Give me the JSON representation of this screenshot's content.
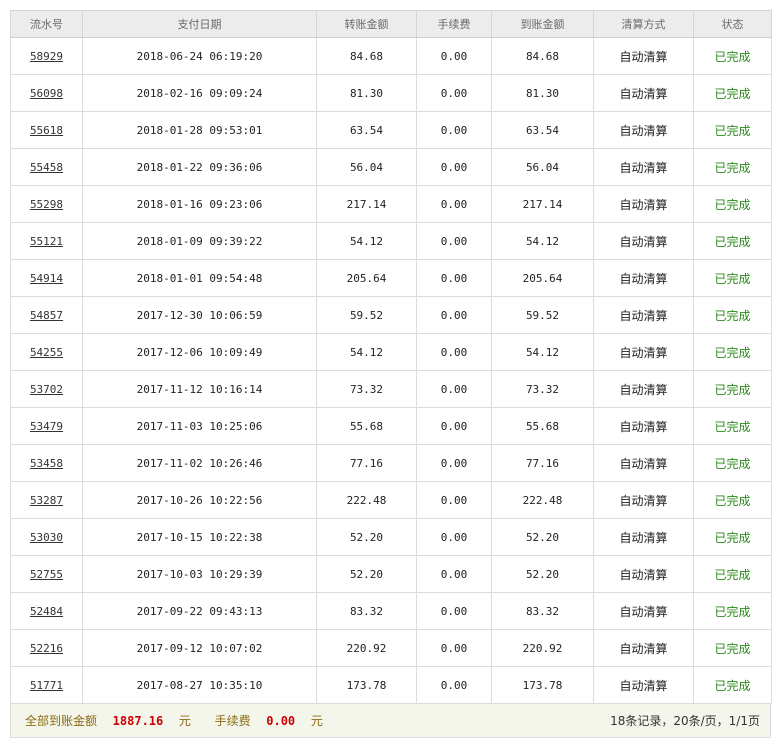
{
  "table": {
    "headers": [
      "流水号",
      "支付日期",
      "转账金额",
      "手续费",
      "到账金额",
      "清算方式",
      "状态"
    ],
    "rows": [
      {
        "serial": "58929",
        "date": "2018-06-24 06:19:20",
        "transfer": "84.68",
        "fee": "0.00",
        "received": "84.68",
        "method": "自动清算",
        "status": "已完成"
      },
      {
        "serial": "56098",
        "date": "2018-02-16 09:09:24",
        "transfer": "81.30",
        "fee": "0.00",
        "received": "81.30",
        "method": "自动清算",
        "status": "已完成"
      },
      {
        "serial": "55618",
        "date": "2018-01-28 09:53:01",
        "transfer": "63.54",
        "fee": "0.00",
        "received": "63.54",
        "method": "自动清算",
        "status": "已完成"
      },
      {
        "serial": "55458",
        "date": "2018-01-22 09:36:06",
        "transfer": "56.04",
        "fee": "0.00",
        "received": "56.04",
        "method": "自动清算",
        "status": "已完成"
      },
      {
        "serial": "55298",
        "date": "2018-01-16 09:23:06",
        "transfer": "217.14",
        "fee": "0.00",
        "received": "217.14",
        "method": "自动清算",
        "status": "已完成"
      },
      {
        "serial": "55121",
        "date": "2018-01-09 09:39:22",
        "transfer": "54.12",
        "fee": "0.00",
        "received": "54.12",
        "method": "自动清算",
        "status": "已完成"
      },
      {
        "serial": "54914",
        "date": "2018-01-01 09:54:48",
        "transfer": "205.64",
        "fee": "0.00",
        "received": "205.64",
        "method": "自动清算",
        "status": "已完成"
      },
      {
        "serial": "54857",
        "date": "2017-12-30 10:06:59",
        "transfer": "59.52",
        "fee": "0.00",
        "received": "59.52",
        "method": "自动清算",
        "status": "已完成"
      },
      {
        "serial": "54255",
        "date": "2017-12-06 10:09:49",
        "transfer": "54.12",
        "fee": "0.00",
        "received": "54.12",
        "method": "自动清算",
        "status": "已完成"
      },
      {
        "serial": "53702",
        "date": "2017-11-12 10:16:14",
        "transfer": "73.32",
        "fee": "0.00",
        "received": "73.32",
        "method": "自动清算",
        "status": "已完成"
      },
      {
        "serial": "53479",
        "date": "2017-11-03 10:25:06",
        "transfer": "55.68",
        "fee": "0.00",
        "received": "55.68",
        "method": "自动清算",
        "status": "已完成"
      },
      {
        "serial": "53458",
        "date": "2017-11-02 10:26:46",
        "transfer": "77.16",
        "fee": "0.00",
        "received": "77.16",
        "method": "自动清算",
        "status": "已完成"
      },
      {
        "serial": "53287",
        "date": "2017-10-26 10:22:56",
        "transfer": "222.48",
        "fee": "0.00",
        "received": "222.48",
        "method": "自动清算",
        "status": "已完成"
      },
      {
        "serial": "53030",
        "date": "2017-10-15 10:22:38",
        "transfer": "52.20",
        "fee": "0.00",
        "received": "52.20",
        "method": "自动清算",
        "status": "已完成"
      },
      {
        "serial": "52755",
        "date": "2017-10-03 10:29:39",
        "transfer": "52.20",
        "fee": "0.00",
        "received": "52.20",
        "method": "自动清算",
        "status": "已完成"
      },
      {
        "serial": "52484",
        "date": "2017-09-22 09:43:13",
        "transfer": "83.32",
        "fee": "0.00",
        "received": "83.32",
        "method": "自动清算",
        "status": "已完成"
      },
      {
        "serial": "52216",
        "date": "2017-09-12 10:07:02",
        "transfer": "220.92",
        "fee": "0.00",
        "received": "220.92",
        "method": "自动清算",
        "status": "已完成"
      },
      {
        "serial": "51771",
        "date": "2017-08-27 10:35:10",
        "transfer": "173.78",
        "fee": "0.00",
        "received": "173.78",
        "method": "自动清算",
        "status": "已完成"
      }
    ]
  },
  "footer": {
    "total_label": "全部到账金额",
    "total_value": "1887.16",
    "total_unit": "元",
    "fee_label": "手续费",
    "fee_value": "0.00",
    "fee_unit": "元",
    "pagination": "18条记录，20条/页，1/1页"
  },
  "colors": {
    "status": "#2a8a1a",
    "total_value": "#cc0000",
    "footer_bg": "#f4f6ec",
    "header_bg": "#ececec"
  }
}
